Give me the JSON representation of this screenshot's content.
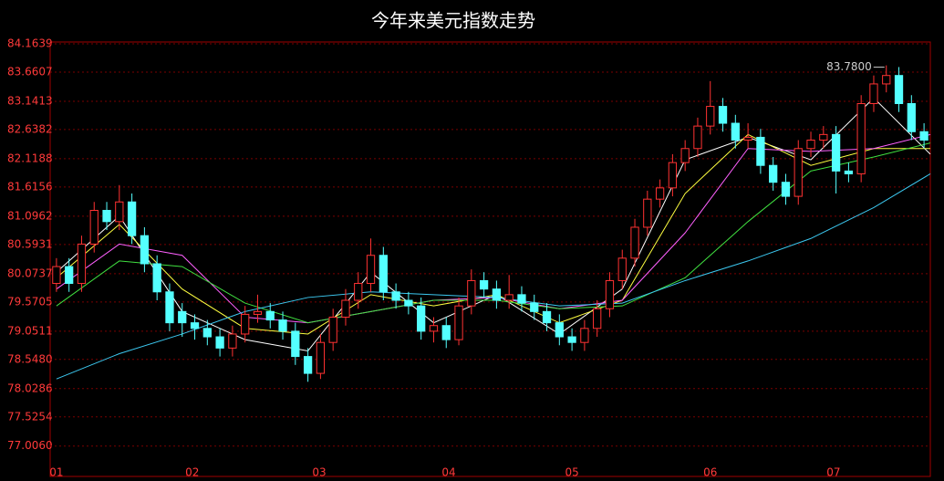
{
  "chart_data": {
    "type": "candlestick",
    "title": "今年来美元指数走势",
    "ylim": [
      76.466,
      84.196
    ],
    "yticks": [
      84.1639,
      83.6607,
      83.1413,
      82.6382,
      82.1188,
      81.6156,
      81.0962,
      80.5931,
      80.0737,
      79.5705,
      79.0511,
      {
        "value": 78.548,
        "label": "78.5480"
      },
      78.0286,
      77.5254,
      {
        "value": 77.006,
        "label": "77.0060"
      }
    ],
    "xlim": [
      0,
      70
    ],
    "xticks": [
      {
        "value": 0.5,
        "label": "01"
      },
      {
        "value": 11.3,
        "label": "02"
      },
      {
        "value": 21.4,
        "label": "03"
      },
      {
        "value": 31.7,
        "label": "04"
      },
      {
        "value": 41.5,
        "label": "05"
      },
      {
        "value": 52.5,
        "label": "06"
      },
      {
        "value": 62.3,
        "label": "07"
      }
    ],
    "grid": true,
    "up_color": "#ff3232",
    "down_color": "#54ffff",
    "open": [
      79.9,
      80.2,
      79.9,
      80.6,
      81.2,
      81.0,
      81.35,
      80.75,
      80.25,
      79.75,
      79.4,
      79.2,
      79.1,
      78.95,
      78.75,
      79.0,
      79.35,
      79.4,
      79.25,
      79.05,
      78.6,
      78.3,
      78.85,
      79.3,
      79.6,
      79.9,
      80.4,
      79.75,
      79.6,
      79.5,
      79.05,
      79.15,
      78.9,
      79.5,
      79.95,
      79.8,
      79.6,
      79.7,
      79.55,
      79.4,
      79.2,
      78.95,
      78.85,
      79.1,
      79.45,
      79.95,
      80.35,
      80.9,
      81.4,
      81.6,
      82.05,
      82.3,
      82.7,
      83.05,
      82.75,
      82.45,
      82.5,
      82.0,
      81.7,
      81.45,
      82.3,
      82.45,
      82.55,
      81.9,
      81.85,
      83.1,
      83.45,
      83.6,
      83.1,
      82.6
    ],
    "high": [
      80.35,
      80.35,
      80.75,
      81.35,
      81.35,
      81.65,
      81.5,
      80.9,
      80.4,
      79.9,
      79.55,
      79.35,
      79.25,
      79.1,
      79.15,
      79.5,
      79.7,
      79.55,
      79.4,
      79.2,
      78.75,
      79.0,
      79.45,
      79.8,
      80.1,
      80.7,
      80.55,
      79.9,
      79.75,
      79.65,
      79.3,
      79.3,
      79.65,
      80.15,
      80.1,
      79.95,
      80.05,
      79.85,
      79.7,
      79.55,
      79.35,
      79.1,
      79.25,
      79.6,
      80.1,
      80.5,
      81.05,
      81.55,
      81.75,
      82.2,
      82.45,
      82.85,
      83.5,
      83.2,
      82.9,
      82.75,
      82.65,
      82.15,
      81.85,
      82.45,
      82.6,
      82.7,
      82.7,
      82.05,
      83.25,
      83.6,
      83.78,
      83.75,
      83.25,
      82.75
    ],
    "low": [
      79.75,
      79.75,
      79.75,
      80.45,
      80.85,
      80.85,
      80.6,
      80.1,
      79.6,
      79.05,
      78.95,
      78.9,
      78.8,
      78.6,
      78.6,
      78.85,
      79.2,
      79.1,
      78.9,
      78.45,
      78.15,
      78.2,
      78.7,
      79.15,
      79.45,
      79.75,
      79.6,
      79.45,
      79.35,
      78.9,
      78.85,
      78.75,
      78.8,
      79.35,
      79.65,
      79.45,
      79.45,
      79.4,
      79.25,
      79.05,
      78.8,
      78.7,
      78.7,
      78.95,
      79.3,
      79.8,
      80.2,
      80.75,
      81.25,
      81.45,
      81.9,
      82.15,
      82.55,
      82.6,
      82.3,
      82.3,
      81.85,
      81.55,
      81.3,
      81.3,
      82.15,
      82.3,
      81.5,
      81.7,
      81.7,
      82.95,
      83.3,
      82.95,
      82.45,
      82.3
    ],
    "close": [
      80.2,
      79.9,
      80.6,
      81.2,
      81.0,
      81.35,
      80.75,
      80.25,
      79.75,
      79.2,
      79.2,
      79.1,
      78.95,
      78.75,
      79.0,
      79.35,
      79.4,
      79.25,
      79.05,
      78.6,
      78.3,
      78.85,
      79.3,
      79.6,
      79.9,
      80.4,
      79.75,
      79.6,
      79.5,
      79.05,
      79.15,
      78.9,
      79.5,
      79.95,
      79.8,
      79.6,
      79.7,
      79.55,
      79.4,
      79.2,
      78.95,
      78.85,
      79.1,
      79.45,
      79.95,
      80.35,
      80.9,
      81.4,
      81.6,
      82.05,
      82.3,
      82.7,
      83.05,
      82.75,
      82.45,
      82.5,
      82.0,
      81.7,
      81.45,
      82.3,
      82.45,
      82.55,
      81.9,
      81.85,
      83.1,
      83.45,
      83.6,
      83.1,
      82.6,
      82.45
    ],
    "max_label": "83.7800",
    "series": [
      {
        "color": "#ffffff",
        "x": [
          0.5,
          5.5,
          10.5,
          15.5,
          20.5,
          25.5,
          30.5,
          35.5,
          40.5,
          45.5,
          50.5,
          55.5,
          60.5,
          65.5,
          70
        ],
        "values": [
          80.1,
          81.1,
          79.4,
          78.9,
          78.7,
          80.1,
          79.2,
          79.7,
          79.0,
          79.8,
          82.1,
          82.5,
          82.1,
          83.2,
          82.2
        ]
      },
      {
        "color": "#ffff40",
        "x": [
          0.5,
          5.5,
          10.5,
          15.5,
          20.5,
          25.5,
          30.5,
          35.5,
          40.5,
          45.5,
          50.5,
          55.5,
          60.5,
          65.5,
          70
        ],
        "values": [
          80.0,
          80.95,
          79.8,
          79.1,
          79.0,
          79.7,
          79.5,
          79.7,
          79.2,
          79.6,
          81.5,
          82.55,
          82.0,
          82.3,
          82.3
        ]
      },
      {
        "color": "#ff60ff",
        "x": [
          0.5,
          5.5,
          10.5,
          15.5,
          20.5,
          25.5,
          30.5,
          35.5,
          40.5,
          45.5,
          50.5,
          55.5,
          60.5,
          65.5,
          70
        ],
        "values": [
          79.8,
          80.6,
          80.4,
          79.3,
          79.2,
          79.4,
          79.6,
          79.65,
          79.45,
          79.6,
          80.8,
          82.3,
          82.25,
          82.3,
          82.55
        ]
      },
      {
        "color": "#40e040",
        "x": [
          0.5,
          5.5,
          10.5,
          15.5,
          20.5,
          25.5,
          30.5,
          35.5,
          40.5,
          45.5,
          50.5,
          55.5,
          60.5,
          65.5,
          70
        ],
        "values": [
          79.5,
          80.3,
          80.2,
          79.55,
          79.2,
          79.4,
          79.6,
          79.6,
          79.45,
          79.5,
          80.0,
          81.0,
          81.9,
          82.15,
          82.4
        ]
      },
      {
        "color": "#3cc8f0",
        "x": [
          0.5,
          5.5,
          10.5,
          15.5,
          20.5,
          25.5,
          30.5,
          35.5,
          40.5,
          45.5,
          50.5,
          55.5,
          60.5,
          65.5,
          70
        ],
        "values": [
          78.2,
          78.65,
          79.0,
          79.4,
          79.65,
          79.75,
          79.7,
          79.65,
          79.5,
          79.55,
          79.95,
          80.3,
          80.7,
          81.25,
          81.85
        ]
      }
    ]
  }
}
